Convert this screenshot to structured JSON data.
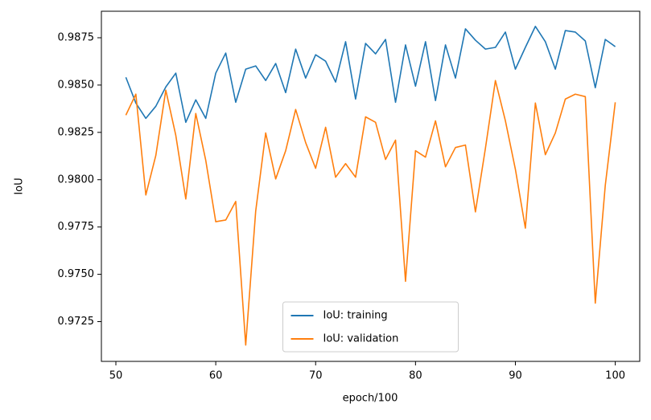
{
  "chart_data": {
    "type": "line",
    "x_label": "epoch/100",
    "y_label": "IoU",
    "x": [
      51,
      52,
      53,
      54,
      55,
      56,
      57,
      58,
      59,
      60,
      61,
      62,
      63,
      64,
      65,
      66,
      67,
      68,
      69,
      70,
      71,
      72,
      73,
      74,
      75,
      76,
      77,
      78,
      79,
      80,
      81,
      82,
      83,
      84,
      85,
      86,
      87,
      88,
      89,
      90,
      91,
      92,
      93,
      94,
      95,
      96,
      97,
      98,
      99,
      100
    ],
    "series": [
      {
        "name": "IoU: training",
        "color": "#1f77b4",
        "values": [
          0.98541,
          0.98405,
          0.98324,
          0.98388,
          0.9849,
          0.98563,
          0.98303,
          0.98422,
          0.98324,
          0.98563,
          0.98669,
          0.98409,
          0.98584,
          0.98601,
          0.98524,
          0.98614,
          0.9846,
          0.9869,
          0.98537,
          0.9866,
          0.98626,
          0.98516,
          0.98729,
          0.98426,
          0.9872,
          0.98665,
          0.98741,
          0.98409,
          0.98712,
          0.98494,
          0.98729,
          0.98418,
          0.98712,
          0.98537,
          0.98797,
          0.98737,
          0.9869,
          0.98699,
          0.9878,
          0.98584,
          0.98699,
          0.9881,
          0.98729,
          0.98584,
          0.98788,
          0.9878,
          0.98733,
          0.98486,
          0.98741,
          0.98703
        ]
      },
      {
        "name": "IoU: validation",
        "color": "#ff7f0e",
        "values": [
          0.98341,
          0.98452,
          0.97919,
          0.98128,
          0.98473,
          0.98234,
          0.97898,
          0.9835,
          0.98102,
          0.97778,
          0.97787,
          0.97885,
          0.97126,
          0.97834,
          0.98247,
          0.98004,
          0.98153,
          0.98371,
          0.98196,
          0.9806,
          0.98277,
          0.98013,
          0.98085,
          0.98013,
          0.98332,
          0.98303,
          0.98107,
          0.98209,
          0.97463,
          0.98153,
          0.98119,
          0.98311,
          0.98068,
          0.9817,
          0.98183,
          0.9783,
          0.98166,
          0.98524,
          0.98311,
          0.98055,
          0.97744,
          0.98405,
          0.98132,
          0.98247,
          0.98426,
          0.98452,
          0.98439,
          0.97348,
          0.9797,
          0.98409
        ]
      }
    ],
    "xlim": [
      48.55,
      102.45
    ],
    "ylim": [
      0.9704,
      0.9889
    ],
    "xticks": [
      50,
      60,
      70,
      80,
      90,
      100
    ],
    "yticks": [
      0.9725,
      {
        "value": 0.975,
        "label": "0.9750"
      },
      0.9775,
      {
        "value": 0.98,
        "label": "0.9800"
      },
      0.9825,
      {
        "value": 0.985,
        "label": "0.9850"
      },
      0.9875
    ],
    "legend": "lower center"
  }
}
